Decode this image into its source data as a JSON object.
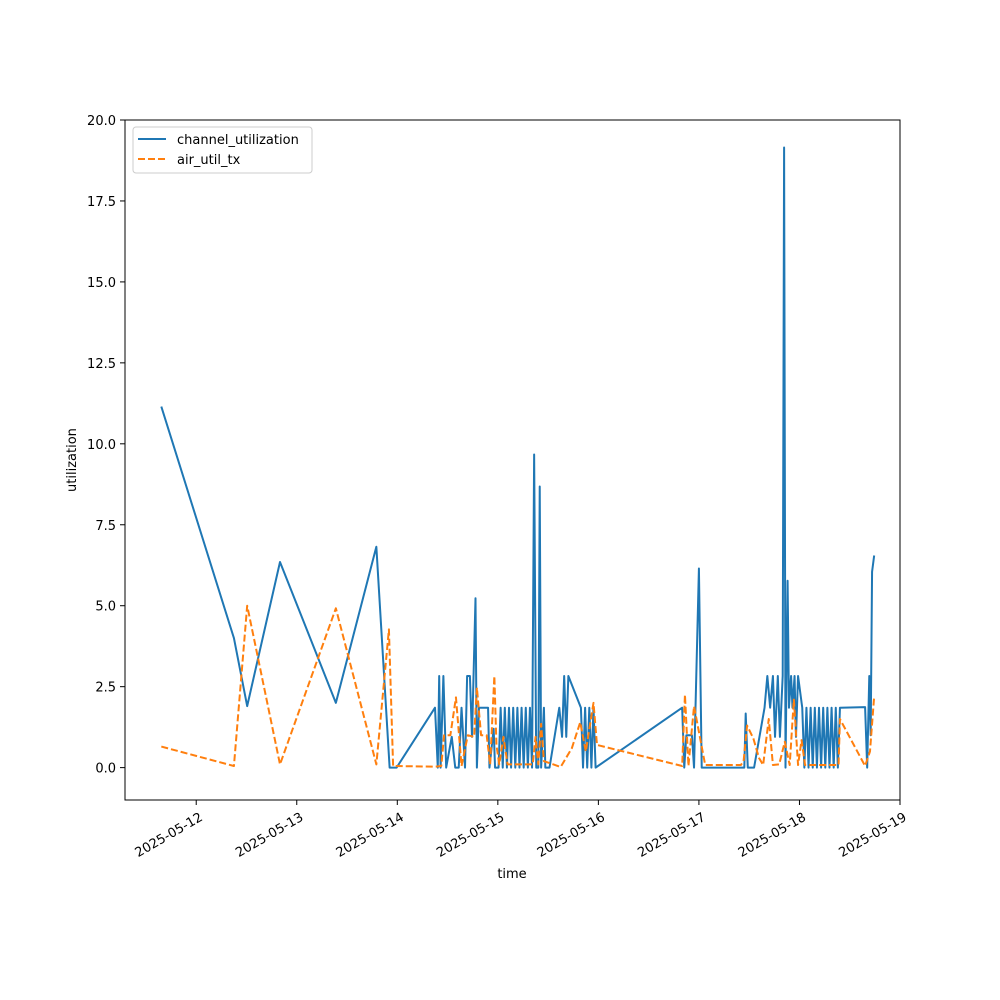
{
  "chart_data": {
    "type": "line",
    "xlabel": "time",
    "ylabel": "utilization",
    "x_axis_type": "datetime",
    "xlim": [
      "2025-05-11T07:00",
      "2025-05-19T00:00"
    ],
    "ylim": [
      -1.0,
      20.0
    ],
    "x_ticks": [
      "2025-05-12",
      "2025-05-13",
      "2025-05-14",
      "2025-05-15",
      "2025-05-16",
      "2025-05-17",
      "2025-05-18",
      "2025-05-19"
    ],
    "y_ticks": [
      "0.0",
      "2.5",
      "5.0",
      "7.5",
      "10.0",
      "12.5",
      "15.0",
      "17.5",
      "20.0"
    ],
    "grid": false,
    "legend_position": "upper left",
    "series": [
      {
        "name": "channel_utilization",
        "color": "#1f77b4",
        "style": "solid",
        "points": [
          [
            "2025-05-11T15:40",
            11.15
          ],
          [
            "2025-05-12T09:00",
            4.0
          ],
          [
            "2025-05-12T12:10",
            1.9
          ],
          [
            "2025-05-12T20:00",
            6.35
          ],
          [
            "2025-05-13T09:20",
            2.0
          ],
          [
            "2025-05-13T19:00",
            6.82
          ],
          [
            "2025-05-13T22:10",
            0.0
          ],
          [
            "2025-05-13T23:50",
            0.0
          ],
          [
            "2025-05-14T09:00",
            1.85
          ],
          [
            "2025-05-14T09:40",
            0.0
          ],
          [
            "2025-05-14T10:00",
            2.83
          ],
          [
            "2025-05-14T10:20",
            0.0
          ],
          [
            "2025-05-14T11:00",
            2.83
          ],
          [
            "2025-05-14T11:40",
            0.0
          ],
          [
            "2025-05-14T13:00",
            0.95
          ],
          [
            "2025-05-14T13:50",
            0.0
          ],
          [
            "2025-05-14T14:40",
            0.0
          ],
          [
            "2025-05-14T15:20",
            1.85
          ],
          [
            "2025-05-14T16:10",
            0.0
          ],
          [
            "2025-05-14T16:40",
            2.83
          ],
          [
            "2025-05-14T17:20",
            2.83
          ],
          [
            "2025-05-14T17:50",
            0.95
          ],
          [
            "2025-05-14T18:40",
            5.23
          ],
          [
            "2025-05-14T19:00",
            0.0
          ],
          [
            "2025-05-14T19:30",
            1.85
          ],
          [
            "2025-05-14T21:40",
            1.85
          ],
          [
            "2025-05-14T22:00",
            0.0
          ],
          [
            "2025-05-14T23:00",
            1.2
          ],
          [
            "2025-05-14T23:20",
            0.0
          ],
          [
            "2025-05-15T00:10",
            0.0
          ],
          [
            "2025-05-15T00:40",
            1.85
          ],
          [
            "2025-05-15T01:10",
            0.0
          ],
          [
            "2025-05-15T01:40",
            1.85
          ],
          [
            "2025-05-15T02:10",
            0.0
          ],
          [
            "2025-05-15T02:40",
            1.85
          ],
          [
            "2025-05-15T03:10",
            0.0
          ],
          [
            "2025-05-15T03:40",
            1.85
          ],
          [
            "2025-05-15T04:10",
            0.0
          ],
          [
            "2025-05-15T04:40",
            1.85
          ],
          [
            "2025-05-15T05:10",
            0.0
          ],
          [
            "2025-05-15T05:40",
            1.85
          ],
          [
            "2025-05-15T06:10",
            0.0
          ],
          [
            "2025-05-15T06:40",
            1.85
          ],
          [
            "2025-05-15T07:10",
            0.0
          ],
          [
            "2025-05-15T07:40",
            1.85
          ],
          [
            "2025-05-15T08:10",
            0.0
          ],
          [
            "2025-05-15T08:40",
            9.67
          ],
          [
            "2025-05-15T09:10",
            0.0
          ],
          [
            "2025-05-15T09:40",
            0.0
          ],
          [
            "2025-05-15T10:00",
            8.68
          ],
          [
            "2025-05-15T10:20",
            0.0
          ],
          [
            "2025-05-15T11:00",
            1.85
          ],
          [
            "2025-05-15T11:20",
            0.0
          ],
          [
            "2025-05-15T12:20",
            0.0
          ],
          [
            "2025-05-15T14:40",
            1.85
          ],
          [
            "2025-05-15T15:20",
            0.95
          ],
          [
            "2025-05-15T15:50",
            2.83
          ],
          [
            "2025-05-15T16:20",
            0.95
          ],
          [
            "2025-05-15T16:50",
            2.83
          ],
          [
            "2025-05-15T19:50",
            1.85
          ],
          [
            "2025-05-15T20:20",
            0.0
          ],
          [
            "2025-05-15T20:50",
            1.85
          ],
          [
            "2025-05-15T21:20",
            0.0
          ],
          [
            "2025-05-15T21:50",
            1.85
          ],
          [
            "2025-05-15T22:20",
            0.0
          ],
          [
            "2025-05-15T22:50",
            1.85
          ],
          [
            "2025-05-15T23:20",
            0.0
          ],
          [
            "2025-05-16T20:00",
            1.85
          ],
          [
            "2025-05-16T20:30",
            0.0
          ],
          [
            "2025-05-16T21:00",
            1.0
          ],
          [
            "2025-05-16T22:20",
            1.0
          ],
          [
            "2025-05-16T22:50",
            0.0
          ],
          [
            "2025-05-17T00:00",
            6.15
          ],
          [
            "2025-05-17T00:40",
            0.0
          ],
          [
            "2025-05-17T10:50",
            0.0
          ],
          [
            "2025-05-17T11:10",
            1.67
          ],
          [
            "2025-05-17T11:40",
            0.0
          ],
          [
            "2025-05-17T13:10",
            0.0
          ],
          [
            "2025-05-17T15:40",
            1.85
          ],
          [
            "2025-05-17T16:20",
            2.83
          ],
          [
            "2025-05-17T17:00",
            1.85
          ],
          [
            "2025-05-17T17:40",
            2.83
          ],
          [
            "2025-05-17T18:10",
            0.95
          ],
          [
            "2025-05-17T18:50",
            2.83
          ],
          [
            "2025-05-17T19:20",
            0.95
          ],
          [
            "2025-05-17T20:00",
            2.83
          ],
          [
            "2025-05-17T20:20",
            19.15
          ],
          [
            "2025-05-17T20:40",
            0.0
          ],
          [
            "2025-05-17T21:10",
            5.77
          ],
          [
            "2025-05-17T21:30",
            1.85
          ],
          [
            "2025-05-17T22:00",
            2.83
          ],
          [
            "2025-05-17T22:20",
            1.85
          ],
          [
            "2025-05-17T22:50",
            2.83
          ],
          [
            "2025-05-17T23:10",
            0.95
          ],
          [
            "2025-05-17T23:40",
            2.83
          ],
          [
            "2025-05-18T00:40",
            1.85
          ],
          [
            "2025-05-18T01:10",
            0.0
          ],
          [
            "2025-05-18T01:40",
            1.85
          ],
          [
            "2025-05-18T02:10",
            0.0
          ],
          [
            "2025-05-18T02:40",
            1.85
          ],
          [
            "2025-05-18T03:10",
            0.0
          ],
          [
            "2025-05-18T03:40",
            1.85
          ],
          [
            "2025-05-18T04:10",
            0.0
          ],
          [
            "2025-05-18T04:40",
            1.85
          ],
          [
            "2025-05-18T05:10",
            0.0
          ],
          [
            "2025-05-18T05:40",
            1.85
          ],
          [
            "2025-05-18T06:10",
            0.0
          ],
          [
            "2025-05-18T06:40",
            1.85
          ],
          [
            "2025-05-18T07:10",
            0.0
          ],
          [
            "2025-05-18T07:40",
            1.85
          ],
          [
            "2025-05-18T08:10",
            0.0
          ],
          [
            "2025-05-18T08:40",
            1.85
          ],
          [
            "2025-05-18T09:10",
            0.0
          ],
          [
            "2025-05-18T09:40",
            1.85
          ],
          [
            "2025-05-18T15:40",
            1.87
          ],
          [
            "2025-05-18T16:10",
            0.0
          ],
          [
            "2025-05-18T16:40",
            2.83
          ],
          [
            "2025-05-18T17:00",
            1.0
          ],
          [
            "2025-05-18T17:20",
            6.05
          ],
          [
            "2025-05-18T17:50",
            6.55
          ]
        ]
      },
      {
        "name": "air_util_tx",
        "color": "#ff7f0e",
        "style": "dashed",
        "points": [
          [
            "2025-05-11T15:40",
            0.65
          ],
          [
            "2025-05-12T09:00",
            0.05
          ],
          [
            "2025-05-12T12:10",
            5.0
          ],
          [
            "2025-05-12T20:00",
            0.1
          ],
          [
            "2025-05-13T09:20",
            4.92
          ],
          [
            "2025-05-13T19:00",
            0.1
          ],
          [
            "2025-05-13T22:00",
            4.27
          ],
          [
            "2025-05-13T23:00",
            0.05
          ],
          [
            "2025-05-14T09:00",
            0.03
          ],
          [
            "2025-05-14T10:30",
            0.05
          ],
          [
            "2025-05-14T11:10",
            1.0
          ],
          [
            "2025-05-14T12:40",
            1.0
          ],
          [
            "2025-05-14T14:00",
            2.17
          ],
          [
            "2025-05-14T15:20",
            0.05
          ],
          [
            "2025-05-14T16:50",
            1.0
          ],
          [
            "2025-05-14T18:20",
            0.95
          ],
          [
            "2025-05-14T19:00",
            2.47
          ],
          [
            "2025-05-14T20:00",
            1.0
          ],
          [
            "2025-05-14T21:20",
            1.0
          ],
          [
            "2025-05-14T22:10",
            0.1
          ],
          [
            "2025-05-14T23:10",
            2.83
          ],
          [
            "2025-05-14T23:40",
            0.7
          ],
          [
            "2025-05-15T00:20",
            0.1
          ],
          [
            "2025-05-15T01:20",
            0.95
          ],
          [
            "2025-05-15T02:20",
            0.1
          ],
          [
            "2025-05-15T03:20",
            0.1
          ],
          [
            "2025-05-15T04:20",
            0.1
          ],
          [
            "2025-05-15T05:20",
            0.1
          ],
          [
            "2025-05-15T06:20",
            0.1
          ],
          [
            "2025-05-15T07:20",
            0.1
          ],
          [
            "2025-05-15T08:20",
            0.1
          ],
          [
            "2025-05-15T09:00",
            0.95
          ],
          [
            "2025-05-15T09:40",
            0.1
          ],
          [
            "2025-05-15T10:20",
            1.35
          ],
          [
            "2025-05-15T11:00",
            0.2
          ],
          [
            "2025-05-15T15:00",
            0.02
          ],
          [
            "2025-05-15T17:40",
            0.6
          ],
          [
            "2025-05-15T19:40",
            1.4
          ],
          [
            "2025-05-15T21:00",
            0.5
          ],
          [
            "2025-05-15T22:50",
            2.0
          ],
          [
            "2025-05-15T23:40",
            0.7
          ],
          [
            "2025-05-16T20:00",
            0.05
          ],
          [
            "2025-05-16T20:40",
            2.25
          ],
          [
            "2025-05-16T21:30",
            0.05
          ],
          [
            "2025-05-16T22:50",
            1.9
          ],
          [
            "2025-05-17T01:30",
            0.08
          ],
          [
            "2025-05-17T10:00",
            0.08
          ],
          [
            "2025-05-17T10:40",
            0.2
          ],
          [
            "2025-05-17T11:30",
            1.3
          ],
          [
            "2025-05-17T13:00",
            0.9
          ],
          [
            "2025-05-17T14:20",
            0.3
          ],
          [
            "2025-05-17T15:20",
            0.08
          ],
          [
            "2025-05-17T16:40",
            1.5
          ],
          [
            "2025-05-17T17:40",
            0.08
          ],
          [
            "2025-05-17T19:10",
            0.1
          ],
          [
            "2025-05-17T20:30",
            0.8
          ],
          [
            "2025-05-17T21:40",
            0.08
          ],
          [
            "2025-05-17T22:40",
            2.1
          ],
          [
            "2025-05-17T23:40",
            0.08
          ],
          [
            "2025-05-18T00:30",
            0.85
          ],
          [
            "2025-05-18T01:20",
            0.08
          ],
          [
            "2025-05-18T02:20",
            0.08
          ],
          [
            "2025-05-18T03:20",
            0.08
          ],
          [
            "2025-05-18T04:20",
            0.08
          ],
          [
            "2025-05-18T05:20",
            0.08
          ],
          [
            "2025-05-18T06:20",
            0.08
          ],
          [
            "2025-05-18T07:20",
            0.08
          ],
          [
            "2025-05-18T08:20",
            0.08
          ],
          [
            "2025-05-18T09:20",
            0.08
          ],
          [
            "2025-05-18T09:40",
            1.5
          ],
          [
            "2025-05-18T15:40",
            0.05
          ],
          [
            "2025-05-18T16:50",
            0.5
          ],
          [
            "2025-05-18T17:50",
            2.2
          ]
        ]
      }
    ]
  }
}
